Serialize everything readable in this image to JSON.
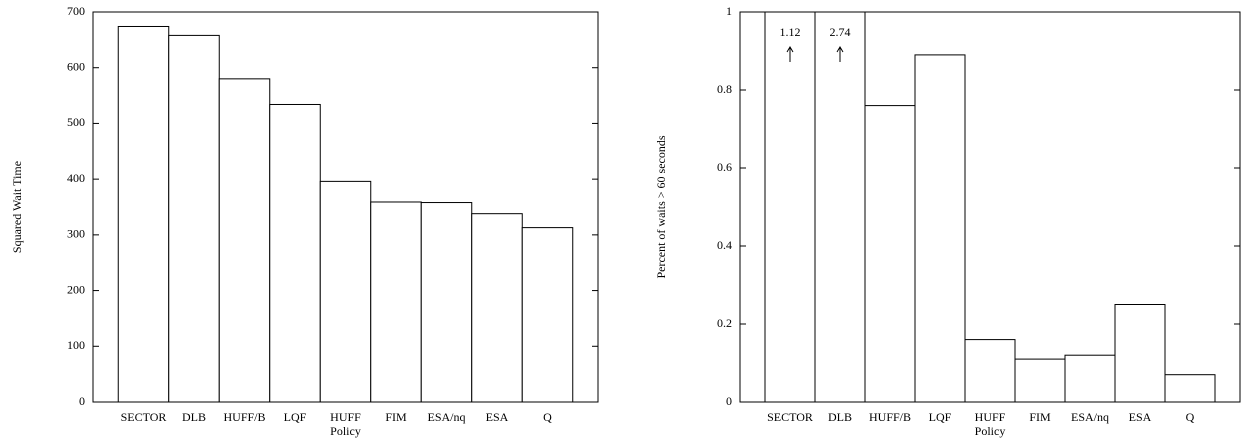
{
  "chart_data": [
    {
      "type": "bar",
      "y_label": "Squared Wait Time",
      "x_label": "Policy",
      "categories": [
        "SECTOR",
        "DLB",
        "HUFF/B",
        "LQF",
        "HUFF",
        "FIM",
        "ESA/nq",
        "ESA",
        "Q"
      ],
      "values": [
        674,
        658,
        580,
        534,
        396,
        359,
        358,
        338,
        313
      ],
      "color": "#ffffff",
      "ylim": [
        0,
        700
      ],
      "yticks": [
        0,
        100,
        200,
        300,
        400,
        500,
        600,
        700
      ]
    },
    {
      "type": "bar",
      "y_label": "Percent of waits > 60 seconds",
      "x_label": "Policy",
      "categories": [
        "SECTOR",
        "DLB",
        "HUFF/B",
        "LQF",
        "HUFF",
        "FIM",
        "ESA/nq",
        "ESA",
        "Q"
      ],
      "values": [
        1.12,
        2.74,
        0.76,
        0.89,
        0.16,
        0.11,
        0.12,
        0.25,
        0.07
      ],
      "value_labels": [
        "1.12",
        "2.74",
        null,
        null,
        null,
        null,
        null,
        null,
        null
      ],
      "color": "#ffffff",
      "ylim": [
        0,
        1
      ],
      "yticks": [
        0,
        0.2,
        0.4,
        0.6,
        0.8,
        1
      ]
    }
  ]
}
